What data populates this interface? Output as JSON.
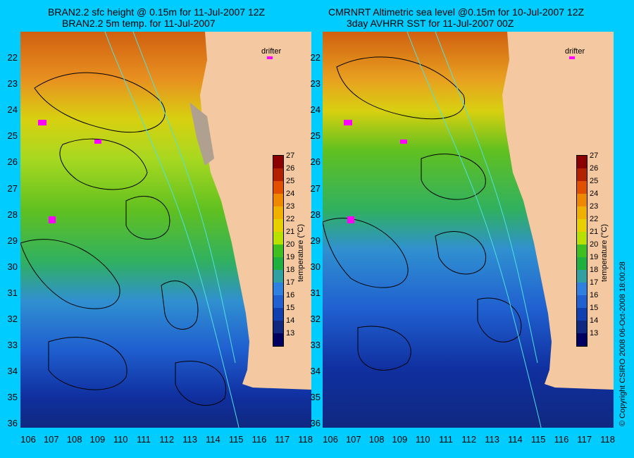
{
  "left_panel": {
    "title_line1": "BRAN2.2 sfc height @ 0.15m for 11-Jul-2007 12Z",
    "title_line2": "BRAN2.2 5m temp. for 11-Jul-2007",
    "drifter_label": "drifter"
  },
  "right_panel": {
    "title_line1": "CMRNRT Altimetric sea level  @0.15m  for 10-Jul-2007 12Z",
    "title_line2": "3day AVHRR SST for 11-Jul-2007 00Z",
    "drifter_label": "drifter"
  },
  "colorbar": {
    "unit_label": "temperature (°C)",
    "ticks": [
      "27",
      "26",
      "25",
      "24",
      "23",
      "22",
      "21",
      "20",
      "19",
      "18",
      "17",
      "16",
      "15",
      "14",
      "13"
    ],
    "colors": [
      "#8b0000",
      "#b22200",
      "#e05000",
      "#ee8800",
      "#f0b000",
      "#e8d000",
      "#b8e000",
      "#40c020",
      "#20b040",
      "#30a0a0",
      "#3080e0",
      "#2060d0",
      "#1040b0",
      "#102880",
      "#000060"
    ]
  },
  "latitudes": [
    "22",
    "23",
    "24",
    "25",
    "26",
    "27",
    "28",
    "29",
    "30",
    "31",
    "32",
    "33",
    "34",
    "35",
    "36"
  ],
  "longitudes": [
    "106",
    "107",
    "108",
    "109",
    "110",
    "111",
    "112",
    "113",
    "114",
    "115",
    "116",
    "117",
    "118"
  ],
  "copyright": "© Copyright CSIRO 2008    06-Oct-2008 18:00:28",
  "colors": {
    "background": "#00ccff",
    "land": "#f4c8a0"
  }
}
